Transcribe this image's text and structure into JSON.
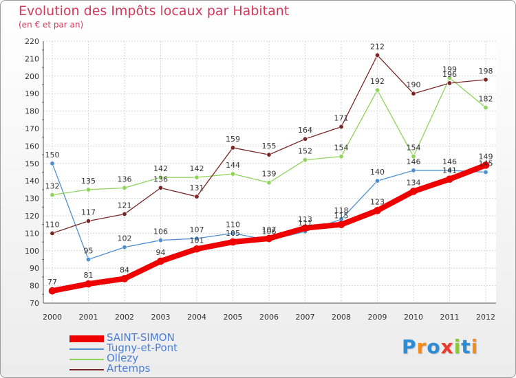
{
  "chart_data": {
    "type": "line",
    "title": "Evolution des Impôts locaux par Habitant",
    "subtitle": "(en € et par an)",
    "xlabel": "",
    "ylabel": "",
    "ylim": [
      70,
      220
    ],
    "yticks": [
      70,
      80,
      90,
      100,
      110,
      120,
      130,
      140,
      150,
      160,
      170,
      180,
      190,
      200,
      210,
      220
    ],
    "grid": true,
    "categories": [
      "2000",
      "2001",
      "2002",
      "2003",
      "2004",
      "2005",
      "2006",
      "2007",
      "2008",
      "2009",
      "2010",
      "2011",
      "2012"
    ],
    "series": [
      {
        "name": "SAINT-SIMON",
        "color": "#ee0000",
        "emphasis": true,
        "values": [
          77,
          81,
          84,
          94,
          101,
          105,
          107,
          113,
          115,
          123,
          134,
          141,
          149
        ],
        "labels": [
          "77",
          "81",
          "84",
          "94",
          "101",
          "105",
          "107",
          "113",
          "115",
          "123",
          "134",
          "141",
          "149"
        ]
      },
      {
        "name": "Tugny-et-Pont",
        "color": "#4d8fd0",
        "values": [
          150,
          95,
          102,
          106,
          107,
          110,
          106,
          111,
          118,
          140,
          146,
          146,
          145
        ],
        "labels": [
          "150",
          "95",
          "102",
          "106",
          "107",
          "110",
          "106",
          "111",
          "118",
          "140",
          "146",
          "146",
          "145"
        ]
      },
      {
        "name": "Ollezy",
        "color": "#8ed35a",
        "values": [
          132,
          135,
          136,
          142,
          142,
          144,
          139,
          152,
          154,
          192,
          154,
          199,
          182
        ],
        "labels": [
          "132",
          "135",
          "136",
          "142",
          "142",
          "144",
          "139",
          "152",
          "154",
          "192",
          "154",
          "199",
          "182"
        ]
      },
      {
        "name": "Artemps",
        "color": "#7a2626",
        "values": [
          110,
          117,
          121,
          136,
          131,
          159,
          155,
          164,
          171,
          212,
          190,
          196,
          198
        ],
        "labels": [
          "110",
          "117",
          "121",
          "136",
          "131",
          "159",
          "155",
          "164",
          "171",
          "212",
          "190",
          "196",
          "198"
        ]
      }
    ],
    "legend_position": "bottom-left"
  },
  "brand": {
    "letters": [
      "P",
      "r",
      "o",
      "x",
      "i",
      "t",
      "i"
    ],
    "colors": [
      "#2a8bd6",
      "#f28a1c",
      "#2a8bd6",
      "#e83b2e",
      "#8cc63f",
      "#2a8bd6",
      "#f28a1c"
    ]
  }
}
